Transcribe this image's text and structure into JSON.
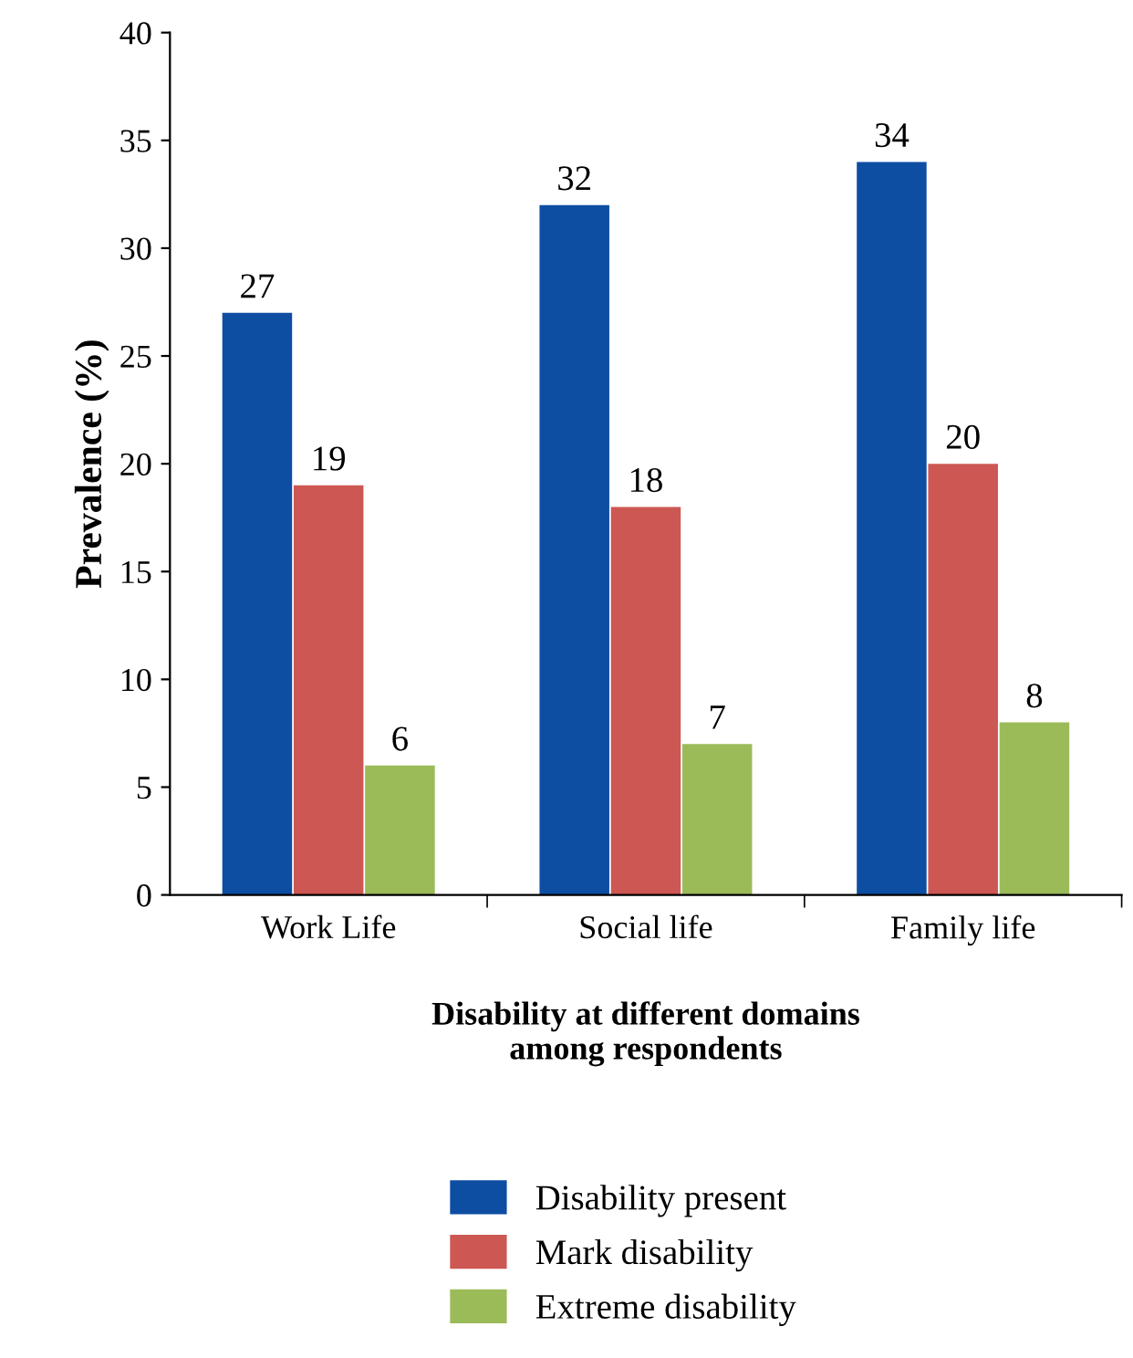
{
  "chart_data": {
    "type": "bar",
    "xlabel": "Disability at different domains\namong respondents",
    "ylabel": "Prevalence (%)",
    "categories": [
      "Work Life",
      "Social life",
      "Family life"
    ],
    "series": [
      {
        "name": "Disability present",
        "color": "#0d4ea3",
        "values": [
          27,
          32,
          34
        ]
      },
      {
        "name": "Mark disability",
        "color": "#cd5753",
        "values": [
          19,
          18,
          20
        ]
      },
      {
        "name": "Extreme disability",
        "color": "#9bbb59",
        "values": [
          6,
          7,
          8
        ]
      }
    ],
    "ylim": [
      0,
      40
    ],
    "yticks": [
      0,
      5,
      10,
      15,
      20,
      25,
      30,
      35,
      40
    ],
    "data_labels": true,
    "legend": "bottom",
    "grid": false
  }
}
